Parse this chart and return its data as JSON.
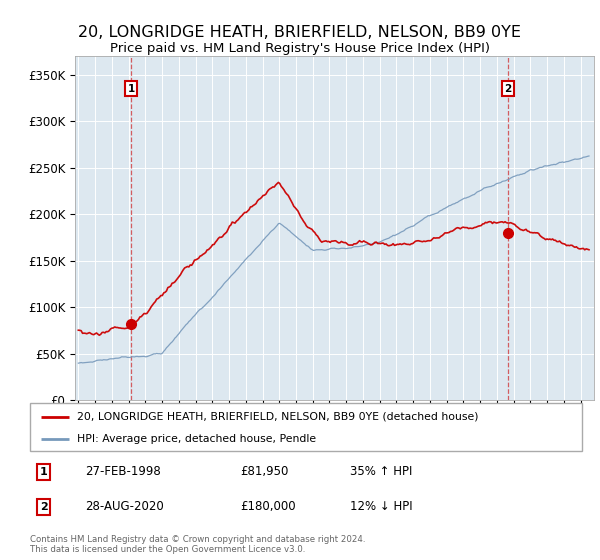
{
  "title": "20, LONGRIDGE HEATH, BRIERFIELD, NELSON, BB9 0YE",
  "subtitle": "Price paid vs. HM Land Registry's House Price Index (HPI)",
  "legend_line1": "20, LONGRIDGE HEATH, BRIERFIELD, NELSON, BB9 0YE (detached house)",
  "legend_line2": "HPI: Average price, detached house, Pendle",
  "annotation1_date": "27-FEB-1998",
  "annotation1_price": "£81,950",
  "annotation1_hpi": "35% ↑ HPI",
  "annotation2_date": "28-AUG-2020",
  "annotation2_price": "£180,000",
  "annotation2_hpi": "12% ↓ HPI",
  "footer": "Contains HM Land Registry data © Crown copyright and database right 2024.\nThis data is licensed under the Open Government Licence v3.0.",
  "red_color": "#cc0000",
  "blue_color": "#7799bb",
  "plot_bg": "#dde8f0",
  "annotation_box_color": "#cc0000",
  "dashed_line_color": "#cc0000",
  "ylim": [
    0,
    370000
  ],
  "yticks": [
    0,
    50000,
    100000,
    150000,
    200000,
    250000,
    300000,
    350000
  ],
  "ytick_labels": [
    "£0",
    "£50K",
    "£100K",
    "£150K",
    "£200K",
    "£250K",
    "£300K",
    "£350K"
  ],
  "sale1_x": 1998.15,
  "sale1_y": 81950,
  "sale2_x": 2020.65,
  "sale2_y": 180000,
  "xmin": 1994.8,
  "xmax": 2025.8
}
